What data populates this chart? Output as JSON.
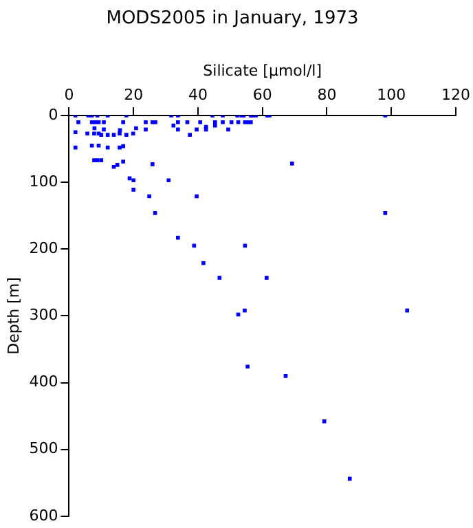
{
  "chart_data": {
    "type": "scatter",
    "title": "MODS2005 in January, 1973",
    "xlabel": "Silicate [µmol/l]",
    "ylabel": "Depth [m]",
    "xlim": [
      0,
      120
    ],
    "xticks": [
      0,
      20,
      40,
      60,
      80,
      100,
      120
    ],
    "ylim": [
      600,
      0
    ],
    "yticks": [
      0,
      100,
      200,
      300,
      400,
      500,
      600
    ],
    "grid": false,
    "legend": false,
    "marker": "square",
    "series": [
      {
        "color": "#0000ff",
        "x": [
          2,
          6,
          7.1,
          8.8,
          12,
          17.8,
          31.7,
          33.8,
          44.5,
          47.7,
          52.2,
          53.5,
          54.2,
          56.4,
          57,
          58,
          61.5,
          62.2,
          98.1,
          2.9,
          7.1,
          8.1,
          9.2,
          10.8,
          16.8,
          23.8,
          25.9,
          26.8,
          33.8,
          36.7,
          40.7,
          45.3,
          47.7,
          50.4,
          52.5,
          54.6,
          55.6,
          56.4,
          32.4,
          45.3,
          42.5,
          7.9,
          20.8,
          10.8,
          23.8,
          33.8,
          39.6,
          42.5,
          49.4,
          2,
          5.7,
          7.8,
          9.2,
          15.7,
          19.9,
          10,
          12,
          13.9,
          17.8,
          37.5,
          15.8,
          7.1,
          9.2,
          2,
          12,
          15.7,
          16.8,
          7.8,
          8.8,
          10,
          16.8,
          69.2,
          25.9,
          15,
          13.9,
          18.8,
          20,
          30.9,
          20,
          24.9,
          39.6,
          26.7,
          98.1,
          33.8,
          38.8,
          54.6,
          41.7,
          46.7,
          61.3,
          54.5,
          104.9,
          52.5,
          55.4,
          67.2,
          79.2,
          87.1
        ],
        "values": [
          0,
          0,
          0,
          0,
          0,
          0,
          0,
          0,
          0,
          0,
          0,
          0,
          0,
          0,
          0,
          0,
          0,
          0,
          0,
          10,
          10,
          10,
          10,
          10,
          10,
          10,
          10,
          10,
          10,
          10,
          10,
          10,
          10,
          10,
          10,
          10,
          10,
          10,
          15,
          15,
          17,
          19,
          19,
          21,
          21,
          21,
          21,
          21,
          21,
          25,
          27,
          27,
          27,
          27,
          27,
          29,
          29,
          29,
          29,
          29,
          22,
          45,
          45,
          48,
          48,
          48,
          46,
          67,
          67,
          67,
          69,
          72,
          73,
          74,
          77,
          94,
          97,
          97,
          111,
          121,
          121,
          146,
          146,
          183,
          195,
          195,
          221,
          243,
          243,
          292,
          292,
          298,
          376,
          390,
          458,
          544
        ]
      }
    ]
  }
}
